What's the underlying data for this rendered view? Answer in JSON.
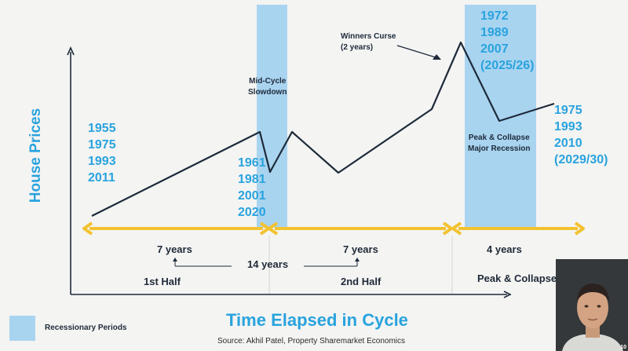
{
  "colors": {
    "background": "#f4f4f3",
    "recession_band": "#a9d4f0",
    "accent_blue": "#29a3de",
    "timeline_yellow": "#f2c230",
    "line": "#1e2a3a",
    "text_dark": "#1f2a37"
  },
  "axes": {
    "y_label": "House Prices",
    "x_label": "Time Elapsed in Cycle"
  },
  "year_groups": {
    "start": [
      "1955",
      "1975",
      "1993",
      "2011"
    ],
    "mid_cycle": [
      "1961",
      "1981",
      "2001",
      "2020"
    ],
    "peak": [
      "1972",
      "1989",
      "2007",
      "(2025/26)"
    ],
    "end": [
      "1975",
      "1993",
      "2010",
      "(2029/30)"
    ]
  },
  "annotations": {
    "mid_cycle": "Mid-Cycle\nSlowdown",
    "winners_curse": "Winners Curse\n(2 years)",
    "peak_collapse": "Peak & Collapse\nMajor Recession"
  },
  "timeline": {
    "first_span": "7 years",
    "total_span": "14 years",
    "second_span": "7 years",
    "collapse_span": "4 years",
    "first_half": "1st Half",
    "second_half": "2nd Half",
    "peak_phase": "Peak & Collapse"
  },
  "legend": {
    "recessionary_label": "Recessionary Periods"
  },
  "source": "Source: Akhil Patel, Property Sharemarket Economics",
  "webcam": {
    "badge": "10"
  }
}
